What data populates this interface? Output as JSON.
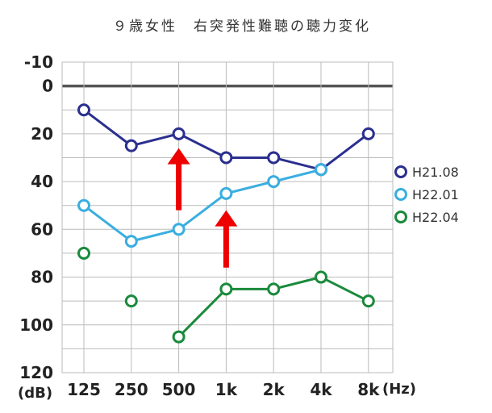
{
  "chart_data": {
    "type": "line",
    "title": "９歳女性　右突発性難聴の聴力変化",
    "y_unit_label": "(dB)",
    "x_unit_label": "(Hz)",
    "categories": [
      "125",
      "250",
      "500",
      "1k",
      "2k",
      "4k",
      "8k"
    ],
    "y_ticks": [
      "-10",
      "0",
      "20",
      "40",
      "60",
      "80",
      "100",
      "120"
    ],
    "ylim": [
      -10,
      120
    ],
    "y_inverted": true,
    "grid": true,
    "legend_position": "right",
    "series": [
      {
        "name": "H21.08",
        "color": "#2a2f8f",
        "values": [
          10,
          25,
          20,
          30,
          30,
          35,
          20
        ]
      },
      {
        "name": "H22.01",
        "color": "#3aaee0",
        "values": [
          50,
          65,
          60,
          45,
          40,
          35,
          null
        ]
      },
      {
        "name": "H22.04",
        "color": "#1a8a3c",
        "values": [
          70,
          90,
          105,
          85,
          85,
          80,
          90
        ]
      }
    ],
    "h22_04_connected_segments": [
      [
        2,
        3
      ],
      [
        3,
        4
      ],
      [
        4,
        5
      ],
      [
        5,
        6
      ]
    ],
    "annotations": [
      {
        "type": "arrow",
        "color": "#ee0000",
        "x_category": "500",
        "from_y": 52,
        "to_y": 26
      },
      {
        "type": "arrow",
        "color": "#ee0000",
        "x_category": "1k",
        "from_y": 76,
        "to_y": 52
      }
    ]
  }
}
